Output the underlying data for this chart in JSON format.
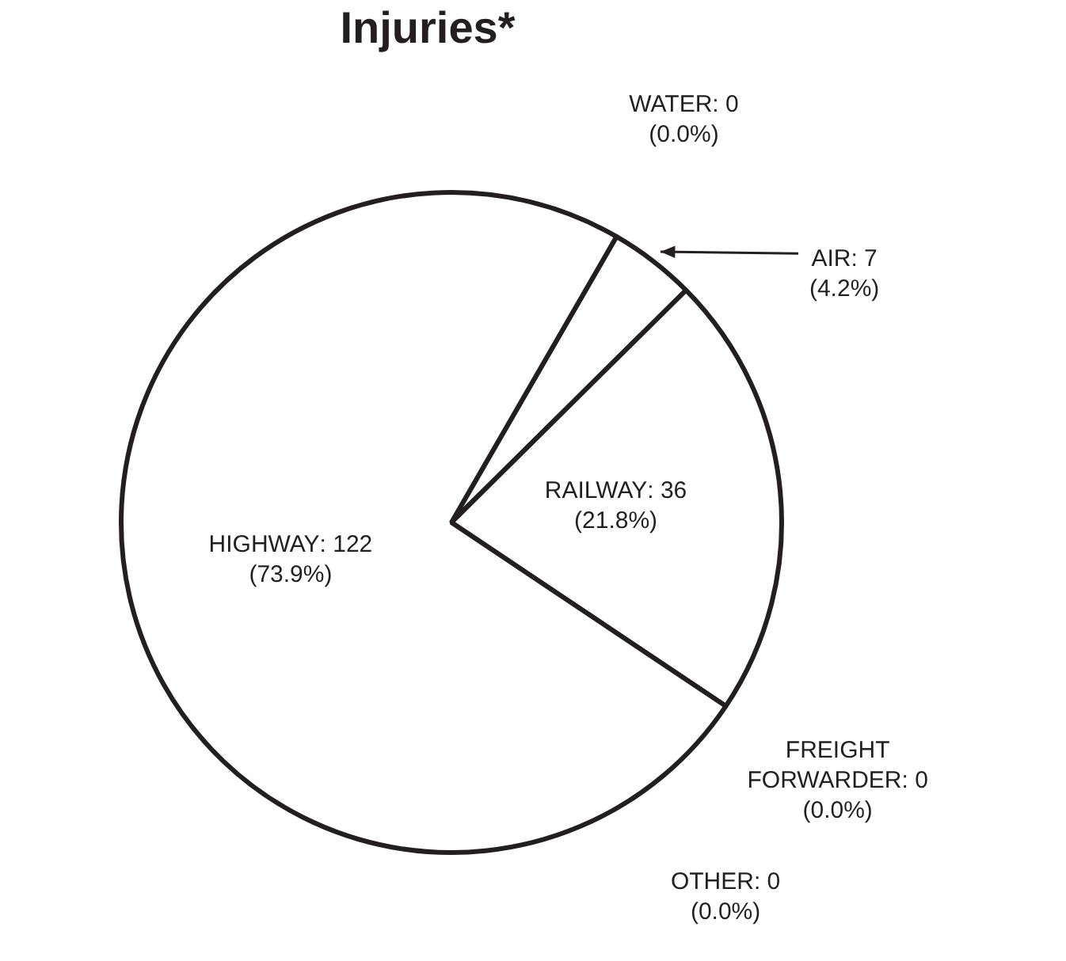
{
  "chart_data": {
    "type": "pie",
    "title": "Injuries*",
    "categories": [
      "WATER",
      "AIR",
      "RAILWAY",
      "FREIGHT FORWARDER",
      "OTHER",
      "HIGHWAY"
    ],
    "values": [
      0,
      7,
      36,
      0,
      0,
      122
    ],
    "colors": [
      "#ffffff",
      "#ffffff",
      "#ffffff",
      "#ffffff",
      "#ffffff",
      "#ffffff"
    ],
    "value_labels": [
      ": 0 (0.0%)",
      ": 7 (4.2%)",
      ": 36 (21.8%)",
      ": 0 (0.0%)",
      ": 0 (0.0%)",
      ": 122 (73.9%)"
    ],
    "legend": false
  }
}
